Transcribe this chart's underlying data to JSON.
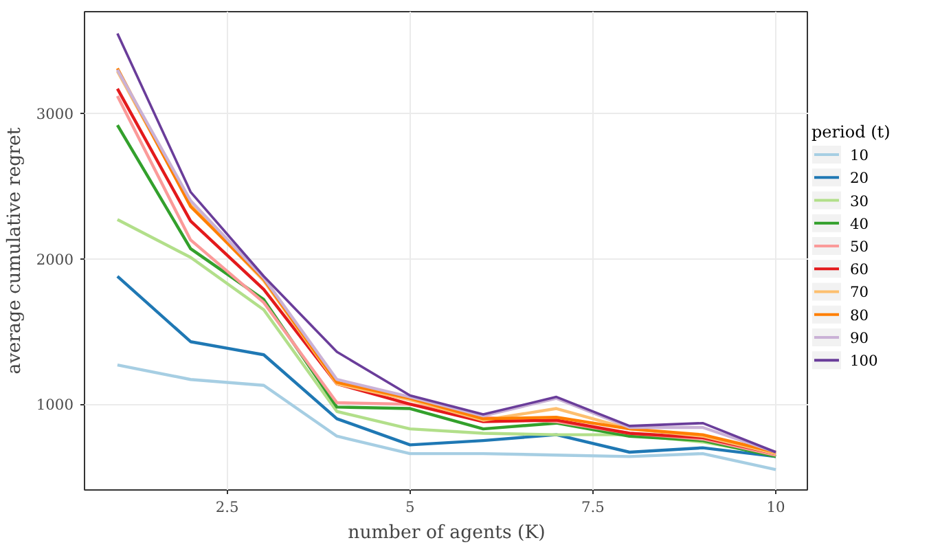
{
  "chart_data": {
    "type": "line",
    "xlabel": "number of agents (K)",
    "ylabel": "average cumulative regret",
    "legend_title": "period (t)",
    "x": [
      1,
      2,
      3,
      4,
      5,
      6,
      7,
      8,
      9,
      10
    ],
    "xlim": [
      0.55,
      10.45
    ],
    "ylim": [
      410,
      3700
    ],
    "xticks": [
      2.5,
      5,
      7.5,
      10
    ],
    "yticks": [
      1000,
      2000,
      3000
    ],
    "grid": true,
    "legend": "right",
    "series": [
      {
        "name": "10",
        "color": "#a6cee3",
        "values": [
          1270,
          1170,
          1130,
          780,
          660,
          660,
          650,
          640,
          660,
          550
        ]
      },
      {
        "name": "20",
        "color": "#1f78b4",
        "values": [
          1880,
          1430,
          1340,
          900,
          720,
          750,
          790,
          670,
          700,
          640
        ]
      },
      {
        "name": "30",
        "color": "#b2df8a",
        "values": [
          2270,
          2010,
          1650,
          950,
          830,
          800,
          790,
          790,
          740,
          650
        ]
      },
      {
        "name": "40",
        "color": "#33a02c",
        "values": [
          2920,
          2070,
          1720,
          980,
          970,
          830,
          870,
          780,
          750,
          640
        ]
      },
      {
        "name": "50",
        "color": "#fb9a99",
        "values": [
          3120,
          2130,
          1700,
          1010,
          1000,
          910,
          880,
          800,
          760,
          650
        ]
      },
      {
        "name": "60",
        "color": "#e31a1c",
        "values": [
          3170,
          2260,
          1790,
          1140,
          1000,
          880,
          890,
          800,
          770,
          660
        ]
      },
      {
        "name": "70",
        "color": "#fdbf6f",
        "values": [
          3290,
          2370,
          1850,
          1140,
          1030,
          890,
          970,
          830,
          780,
          660
        ]
      },
      {
        "name": "80",
        "color": "#ff7f00",
        "values": [
          3310,
          2360,
          1860,
          1150,
          1040,
          900,
          910,
          830,
          790,
          670
        ]
      },
      {
        "name": "90",
        "color": "#cab2d6",
        "values": [
          3300,
          2400,
          1870,
          1170,
          1050,
          920,
          1040,
          840,
          840,
          670
        ]
      },
      {
        "name": "100",
        "color": "#6a3d9a",
        "values": [
          3550,
          2460,
          1880,
          1360,
          1060,
          930,
          1050,
          850,
          870,
          670
        ]
      }
    ]
  }
}
